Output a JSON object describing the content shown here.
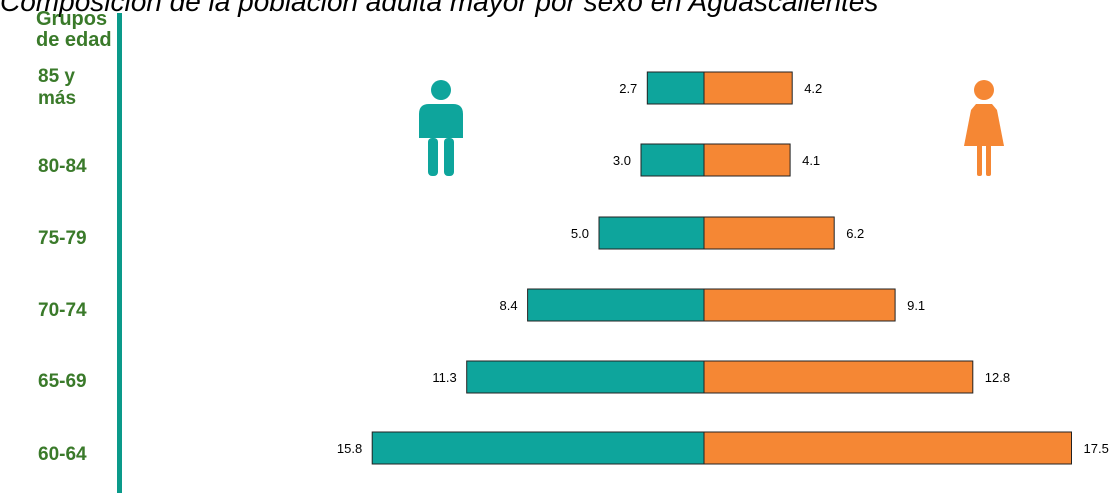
{
  "title": "Composición de la población adulta mayor por sexo en Aguascalientes",
  "colors": {
    "male": "#0ea59c",
    "female": "#f58734",
    "label": "#3a7a2a",
    "axis": "#0a9a8a"
  },
  "icons": {
    "male": "male-person-icon",
    "female": "female-person-icon"
  },
  "chart_data": {
    "type": "bar",
    "orientation": "horizontal-pyramid",
    "category_axis_title": [
      "Grupos",
      "de edad"
    ],
    "categories": [
      "85 y más",
      "80-84",
      "75-79",
      "70-74",
      "65-69",
      "60-64"
    ],
    "category_lines": [
      [
        "85 y",
        "más"
      ],
      [
        "80-84"
      ],
      [
        "75-79"
      ],
      [
        "70-74"
      ],
      [
        "65-69"
      ],
      [
        "60-64"
      ]
    ],
    "series": [
      {
        "values": [
          2.7,
          3.0,
          5.0,
          8.4,
          11.3,
          15.8
        ],
        "side": "left"
      },
      {
        "values": [
          4.2,
          4.1,
          6.2,
          9.1,
          12.8,
          17.5
        ],
        "side": "right"
      }
    ],
    "value_labels": {
      "left": [
        "2.7",
        "3.0",
        "5.0",
        "8.4",
        "11.3",
        "15.8"
      ],
      "right": [
        "4.2",
        "4.1",
        "6.2",
        "9.1",
        "12.8",
        "17.5"
      ]
    },
    "grid": false
  }
}
